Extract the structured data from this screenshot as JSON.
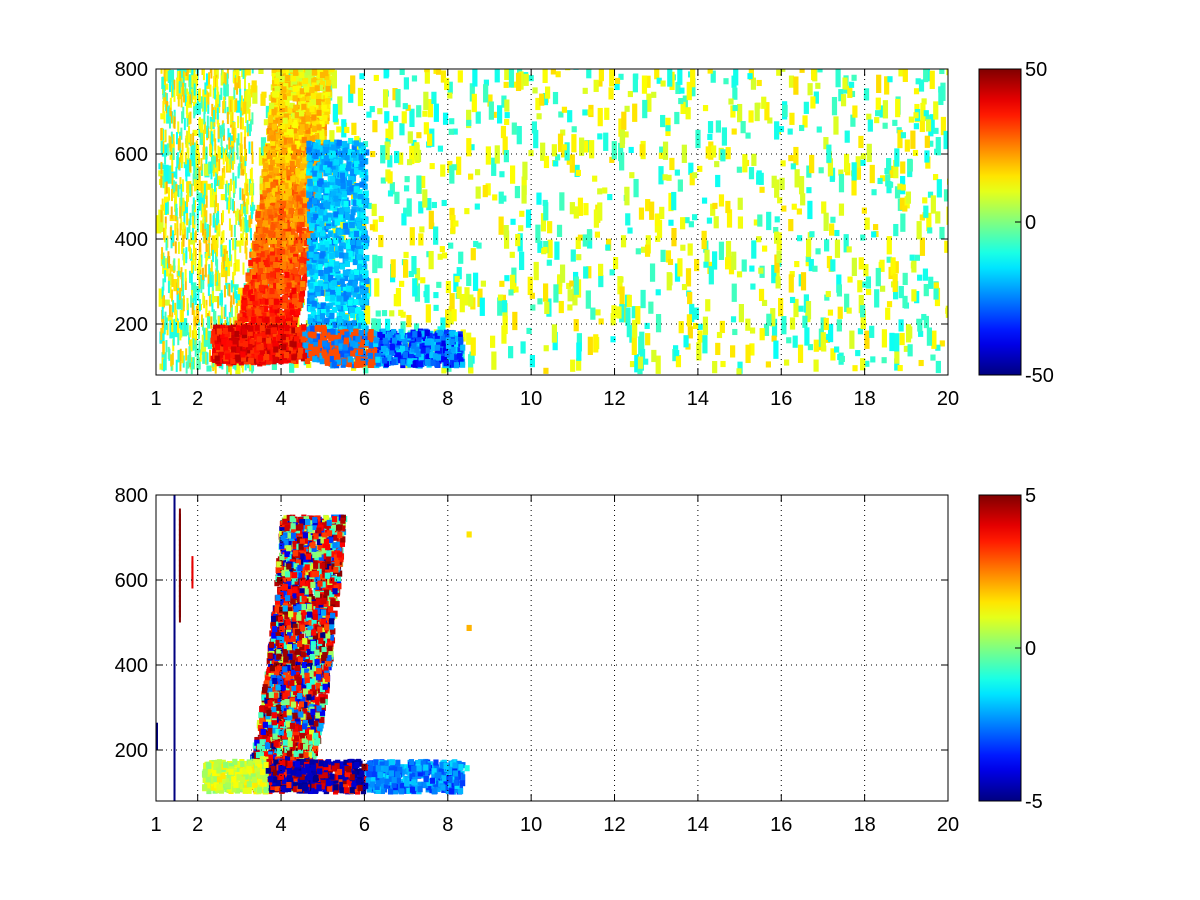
{
  "chart_data": [
    {
      "type": "heatmap",
      "title": "",
      "xlabel": "",
      "ylabel": "",
      "xlim": [
        1,
        20
      ],
      "ylim": [
        80,
        800
      ],
      "grid": true,
      "x_ticks": [
        1,
        2,
        4,
        6,
        8,
        10,
        12,
        14,
        16,
        18,
        20
      ],
      "x_grid": [
        2,
        4,
        6,
        8,
        10,
        12,
        14,
        16,
        18
      ],
      "y_ticks": [
        200,
        400,
        600,
        800
      ],
      "colorbar": {
        "range": [
          -50,
          50
        ],
        "ticks": [
          50,
          0,
          -50
        ],
        "colormap": "jet"
      },
      "regions": [
        {
          "name": "arc_warm",
          "x": [
            2.6,
            4.6
          ],
          "y": [
            100,
            800
          ],
          "value_range": [
            10,
            45
          ]
        },
        {
          "name": "arc_cool",
          "x": [
            4.4,
            6.0
          ],
          "y": [
            150,
            600
          ],
          "value_range": [
            -25,
            -5
          ]
        },
        {
          "name": "low_band",
          "x": [
            2.3,
            8.3
          ],
          "y": [
            90,
            180
          ],
          "value_range": [
            -40,
            40
          ]
        },
        {
          "name": "sparse_noise",
          "x": [
            1,
            20
          ],
          "y": [
            80,
            800
          ],
          "value_range": [
            -10,
            15
          ]
        }
      ]
    },
    {
      "type": "heatmap",
      "title": "",
      "xlabel": "",
      "ylabel": "",
      "xlim": [
        1,
        20
      ],
      "ylim": [
        80,
        800
      ],
      "grid": true,
      "x_ticks": [
        1,
        2,
        4,
        6,
        8,
        10,
        12,
        14,
        16,
        18,
        20
      ],
      "x_grid": [
        2,
        4,
        6,
        8,
        10,
        12,
        14,
        16,
        18
      ],
      "y_ticks": [
        200,
        400,
        600,
        800
      ],
      "colorbar": {
        "range": [
          -5,
          5
        ],
        "ticks": [
          5,
          0,
          -5
        ],
        "colormap": "jet"
      },
      "regions": [
        {
          "name": "arc_mixed",
          "x": [
            3.2,
            5.3
          ],
          "y": [
            100,
            740
          ],
          "value_range": [
            -5,
            5
          ]
        },
        {
          "name": "low_band",
          "x": [
            2.0,
            8.5
          ],
          "y": [
            90,
            170
          ],
          "value_range": [
            -5,
            3
          ]
        },
        {
          "name": "left_edge_lines",
          "x": [
            1.0,
            1.9
          ],
          "y": [
            80,
            800
          ],
          "value_range": [
            -5,
            5
          ]
        }
      ]
    }
  ]
}
